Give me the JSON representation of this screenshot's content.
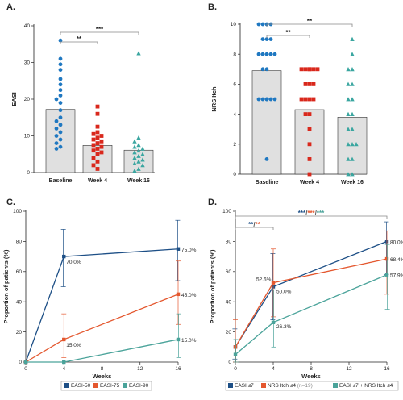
{
  "colors": {
    "blue": "#1f78c1",
    "red": "#d9281c",
    "teal": "#3aa6a0",
    "navy": "#1d4f86",
    "orange": "#e4572e",
    "sea": "#4aa39a",
    "bar_fill": "#e0e0e0",
    "bar_stroke": "#333333",
    "sig_line": "#888888"
  },
  "chart_data": [
    {
      "panel": "A.",
      "type": "bar",
      "ylabel": "EASI",
      "ylim": [
        0,
        40
      ],
      "yticks": [
        0,
        10,
        20,
        30,
        40
      ],
      "categories": [
        "Baseline",
        "Week 4",
        "Week 16"
      ],
      "means": [
        17.2,
        7.4,
        6.1
      ],
      "points": [
        [
          36,
          31,
          29.5,
          28,
          25.5,
          24,
          22.5,
          21,
          20,
          19,
          17,
          15,
          14,
          13,
          12,
          11,
          10,
          9,
          8,
          7,
          6.5
        ],
        [
          18,
          16,
          12.5,
          11,
          10.5,
          10,
          9.5,
          9,
          8.5,
          8,
          7.5,
          7,
          6.5,
          6,
          5.5,
          5,
          4,
          3,
          2,
          1
        ],
        [
          32.5,
          9.5,
          8.5,
          7.5,
          7,
          6.5,
          6,
          5.5,
          5,
          4.5,
          4,
          3.5,
          3,
          2.5,
          2,
          1,
          0.5
        ]
      ],
      "sig": [
        {
          "from": 0,
          "to": 1,
          "label": "**"
        },
        {
          "from": 0,
          "to": 2,
          "label": "***"
        }
      ]
    },
    {
      "panel": "B.",
      "type": "bar",
      "ylabel": "NRS Itch",
      "ylim": [
        0,
        10
      ],
      "yticks": [
        0,
        2,
        4,
        6,
        8,
        10
      ],
      "categories": [
        "Baseline",
        "Week 4",
        "Week 16"
      ],
      "means": [
        6.9,
        4.3,
        3.8
      ],
      "points": [
        [
          10,
          10,
          10,
          10,
          9,
          9,
          9,
          8,
          8,
          8,
          8,
          8,
          7,
          7,
          5,
          5,
          5,
          5,
          5,
          5,
          1
        ],
        [
          7,
          7,
          7,
          7,
          7,
          7,
          6,
          6,
          6,
          5,
          5,
          5,
          5,
          4,
          4,
          3,
          2,
          1,
          0
        ],
        [
          9,
          8,
          7,
          7,
          6,
          6,
          5,
          5,
          4,
          4,
          3,
          3,
          2,
          2,
          2,
          1,
          1,
          0,
          0
        ]
      ],
      "sig": [
        {
          "from": 0,
          "to": 1,
          "label": "**"
        },
        {
          "from": 0,
          "to": 2,
          "label": "**"
        }
      ]
    },
    {
      "panel": "C.",
      "type": "line",
      "xlabel": "Weeks",
      "ylabel": "Proportion of patients (%)",
      "xlim": [
        0,
        16
      ],
      "ylim": [
        0,
        100
      ],
      "xticks": [
        0,
        4,
        8,
        12,
        16
      ],
      "yticks": [
        0,
        20,
        40,
        60,
        80,
        100
      ],
      "series": [
        {
          "name": "EASI-50",
          "x": [
            0,
            4,
            16
          ],
          "y": [
            0,
            70.0,
            75.0
          ],
          "err": [
            [
              0,
              0
            ],
            [
              50,
              88
            ],
            [
              54,
              94
            ]
          ],
          "labels": [
            "",
            "70.0%",
            "75.0%"
          ]
        },
        {
          "name": "EASI-75",
          "x": [
            0,
            4,
            16
          ],
          "y": [
            0,
            15.0,
            45.0
          ],
          "err": [
            [
              0,
              0
            ],
            [
              3,
              32
            ],
            [
              25,
              67
            ]
          ],
          "labels": [
            "",
            "15.0%",
            "45.0%"
          ]
        },
        {
          "name": "EASI-90",
          "x": [
            0,
            4,
            16
          ],
          "y": [
            0,
            0,
            15.0
          ],
          "err": [
            [
              0,
              0
            ],
            [
              0,
              0
            ],
            [
              3,
              32
            ]
          ],
          "labels": [
            "",
            "",
            "15.0%"
          ]
        }
      ]
    },
    {
      "panel": "D.",
      "type": "line",
      "xlabel": "Weeks",
      "ylabel": "Proportion of patients (%)",
      "xlim": [
        0,
        16
      ],
      "ylim": [
        0,
        100
      ],
      "xticks": [
        0,
        4,
        8,
        12,
        16
      ],
      "yticks": [
        0,
        20,
        40,
        60,
        80,
        100
      ],
      "series": [
        {
          "name": "EASI ≤7",
          "x": [
            0,
            4,
            16
          ],
          "y": [
            10,
            50.0,
            80.0
          ],
          "err": [
            [
              2,
              22
            ],
            [
              28,
              72
            ],
            [
              58,
              93
            ]
          ],
          "labels": [
            "",
            "50.0%",
            "80.0%"
          ]
        },
        {
          "name": "NRS Itch ≤4",
          "name_note": "(n=19)",
          "x": [
            0,
            4,
            16
          ],
          "y": [
            10,
            52.6,
            68.4
          ],
          "err": [
            [
              0,
              28
            ],
            [
              30,
              75
            ],
            [
              45,
              87
            ]
          ],
          "labels": [
            "",
            "52.6%",
            "68.4%"
          ]
        },
        {
          "name": "EASI ≤7 + NRS Itch ≤4",
          "x": [
            0,
            4,
            16
          ],
          "y": [
            5,
            26.3,
            57.9
          ],
          "err": [
            [
              0,
              15
            ],
            [
              10,
              48
            ],
            [
              35,
              78
            ]
          ],
          "labels": [
            "",
            "26.3%",
            "57.9%"
          ]
        }
      ],
      "sig": [
        {
          "from": 0,
          "to": 4,
          "parts": [
            "**",
            "/",
            "**"
          ]
        },
        {
          "from": 0,
          "to": 16,
          "parts": [
            "***",
            "/",
            "***",
            "/",
            "***"
          ]
        }
      ]
    }
  ]
}
